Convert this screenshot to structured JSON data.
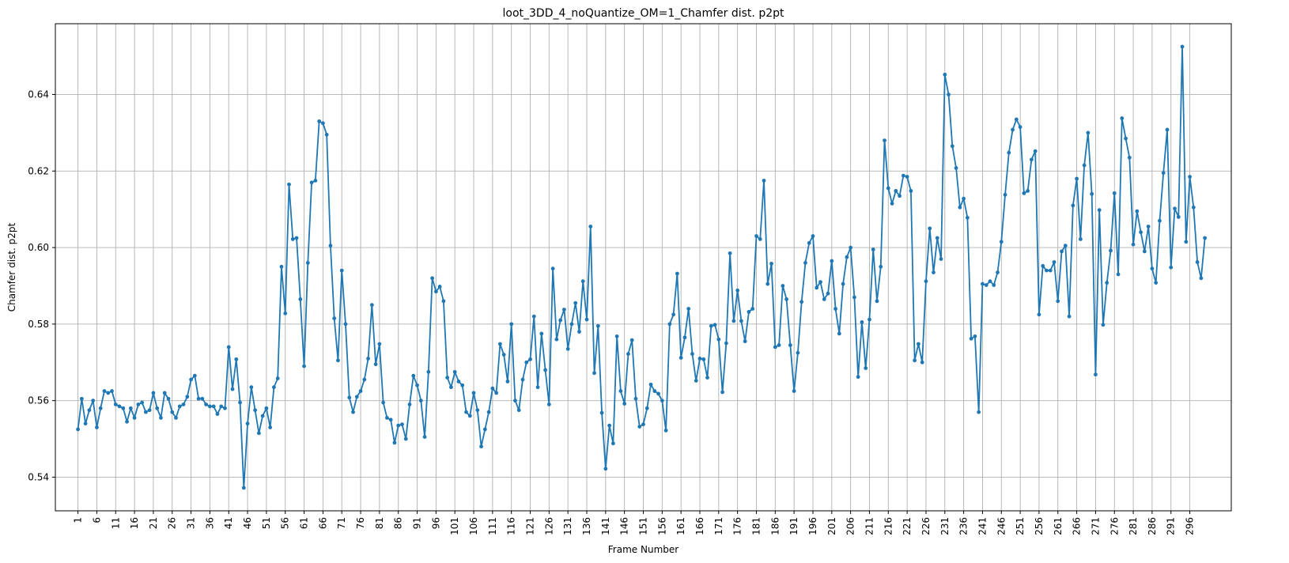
{
  "chart_data": {
    "type": "line",
    "title": "loot_3DD_4_noQuantize_OM=1_Chamfer dist. p2pt",
    "xlabel": "Frame Number",
    "ylabel": "Chamfer dist. p2pt",
    "xlim": [
      -5,
      307
    ],
    "ylim": [
      0.5312,
      0.6585
    ],
    "x_ticks": [
      1,
      6,
      11,
      16,
      21,
      26,
      31,
      36,
      41,
      46,
      51,
      56,
      61,
      66,
      71,
      76,
      81,
      86,
      91,
      96,
      101,
      106,
      111,
      116,
      121,
      126,
      131,
      136,
      141,
      146,
      151,
      156,
      161,
      166,
      171,
      176,
      181,
      186,
      191,
      196,
      201,
      206,
      211,
      216,
      221,
      226,
      231,
      236,
      241,
      246,
      251,
      256,
      261,
      266,
      271,
      276,
      281,
      286,
      291,
      296
    ],
    "y_ticks": [
      0.54,
      0.56,
      0.58,
      0.6,
      0.62,
      0.64
    ],
    "y_tick_labels": [
      "0.54",
      "0.56",
      "0.58",
      "0.60",
      "0.62",
      "0.64"
    ],
    "grid": true,
    "color": "#1f77b4",
    "series": [
      {
        "x_start": 1,
        "values": [
          0.5525,
          0.5605,
          0.554,
          0.5575,
          0.56,
          0.553,
          0.558,
          0.5625,
          0.562,
          0.5625,
          0.559,
          0.5585,
          0.558,
          0.5545,
          0.558,
          0.5555,
          0.559,
          0.5595,
          0.557,
          0.5575,
          0.562,
          0.558,
          0.5555,
          0.562,
          0.5605,
          0.557,
          0.5555,
          0.5585,
          0.559,
          0.561,
          0.5655,
          0.5665,
          0.5605,
          0.5605,
          0.559,
          0.5585,
          0.5585,
          0.5565,
          0.5585,
          0.558,
          0.574,
          0.563,
          0.5708,
          0.5595,
          0.5372,
          0.554,
          0.5635,
          0.5575,
          0.5515,
          0.556,
          0.558,
          0.553,
          0.5635,
          0.5658,
          0.595,
          0.5828,
          0.6165,
          0.6022,
          0.6025,
          0.5865,
          0.569,
          0.596,
          0.617,
          0.6175,
          0.633,
          0.6325,
          0.6295,
          0.6005,
          0.5815,
          0.5705,
          0.594,
          0.58,
          0.5608,
          0.557,
          0.561,
          0.5625,
          0.5655,
          0.571,
          0.585,
          0.5695,
          0.5748,
          0.5595,
          0.5555,
          0.555,
          0.549,
          0.5535,
          0.5538,
          0.55,
          0.559,
          0.5665,
          0.564,
          0.56,
          0.5505,
          0.5675,
          0.592,
          0.5885,
          0.5898,
          0.586,
          0.566,
          0.5635,
          0.5675,
          0.565,
          0.564,
          0.557,
          0.556,
          0.562,
          0.5575,
          0.548,
          0.5525,
          0.557,
          0.5632,
          0.562,
          0.5748,
          0.572,
          0.565,
          0.58,
          0.56,
          0.5575,
          0.5655,
          0.57,
          0.5708,
          0.582,
          0.5635,
          0.5775,
          0.568,
          0.559,
          0.5945,
          0.576,
          0.581,
          0.5838,
          0.5735,
          0.58,
          0.5855,
          0.578,
          0.5912,
          0.5812,
          0.6055,
          0.5672,
          0.5795,
          0.5568,
          0.5422,
          0.5535,
          0.5488,
          0.5768,
          0.5625,
          0.5592,
          0.5722,
          0.5758,
          0.5605,
          0.5532,
          0.5538,
          0.558,
          0.5642,
          0.5625,
          0.5618,
          0.56,
          0.5522,
          0.58,
          0.5825,
          0.5932,
          0.5712,
          0.5765,
          0.584,
          0.5722,
          0.5652,
          0.571,
          0.5708,
          0.566,
          0.5795,
          0.5798,
          0.576,
          0.5622,
          0.575,
          0.5985,
          0.5808,
          0.5888,
          0.5808,
          0.5755,
          0.5832,
          0.584,
          0.603,
          0.6022,
          0.6175,
          0.5905,
          0.5958,
          0.574,
          0.5745,
          0.59,
          0.5865,
          0.5745,
          0.5625,
          0.5725,
          0.5858,
          0.596,
          0.6012,
          0.603,
          0.5895,
          0.591,
          0.5865,
          0.588,
          0.5965,
          0.584,
          0.5775,
          0.5905,
          0.5975,
          0.6,
          0.587,
          0.5662,
          0.5805,
          0.5685,
          0.5812,
          0.5995,
          0.586,
          0.595,
          0.628,
          0.6155,
          0.6115,
          0.6148,
          0.6135,
          0.6188,
          0.6185,
          0.6148,
          0.5705,
          0.5748,
          0.57,
          0.5912,
          0.605,
          0.5935,
          0.6025,
          0.597,
          0.6452,
          0.64,
          0.6265,
          0.6208,
          0.6105,
          0.6128,
          0.6078,
          0.5762,
          0.5768,
          0.557,
          0.5905,
          0.5902,
          0.5912,
          0.5902,
          0.5935,
          0.6015,
          0.6138,
          0.6248,
          0.6308,
          0.6335,
          0.6315,
          0.6142,
          0.6148,
          0.623,
          0.6252,
          0.5825,
          0.5952,
          0.594,
          0.594,
          0.5962,
          0.586,
          0.599,
          0.6005,
          0.582,
          0.611,
          0.618,
          0.6022,
          0.6215,
          0.63,
          0.614,
          0.5668,
          0.6098,
          0.5798,
          0.5908,
          0.5992,
          0.6142,
          0.593,
          0.6338,
          0.6285,
          0.6235,
          0.6008,
          0.6095,
          0.604,
          0.599,
          0.6055,
          0.5945,
          0.5908,
          0.607,
          0.6195,
          0.6308,
          0.5948,
          0.6102,
          0.608,
          0.6525,
          0.6015,
          0.6185,
          0.6105,
          0.5962,
          0.592,
          0.6025
        ]
      }
    ]
  }
}
